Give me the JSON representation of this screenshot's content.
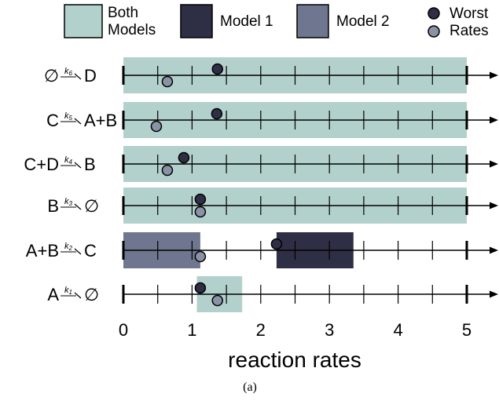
{
  "chart_data": {
    "type": "interval-scatter",
    "xlabel": "reaction rates",
    "xlim": [
      0,
      5
    ],
    "xticks": [
      0,
      1,
      2,
      3,
      4,
      5
    ],
    "minor_step": 0.5,
    "caption": "(a)",
    "colors": {
      "both": "#b3d1cc",
      "model1": "#2e2f45",
      "model2": "#6e7690",
      "worst": "#2e2f45",
      "rates": "#8a92a6"
    },
    "legend": [
      {
        "key": "both",
        "label_lines": [
          "Both",
          "Models"
        ]
      },
      {
        "key": "model1",
        "label_lines": [
          "Model 1"
        ]
      },
      {
        "key": "model2",
        "label_lines": [
          "Model 2"
        ]
      },
      {
        "key": "points",
        "label_lines": [
          "Worst",
          "Rates"
        ]
      }
    ],
    "rows": [
      {
        "reaction": {
          "left": "∅",
          "k": "6",
          "right": "D"
        },
        "intervals": [
          {
            "model": "both",
            "from": 0,
            "to": 5
          }
        ],
        "worst": 1.37,
        "rate": 0.64
      },
      {
        "reaction": {
          "left": "C",
          "k": "5",
          "right": "A+B"
        },
        "intervals": [
          {
            "model": "both",
            "from": 0,
            "to": 5
          }
        ],
        "worst": 1.36,
        "rate": 0.48
      },
      {
        "reaction": {
          "left": "C+D",
          "k": "4",
          "right": "B"
        },
        "intervals": [
          {
            "model": "both",
            "from": 0,
            "to": 5
          }
        ],
        "worst": 0.88,
        "rate": 0.64
      },
      {
        "reaction": {
          "left": "B",
          "k": "3",
          "right": "∅"
        },
        "intervals": [
          {
            "model": "both",
            "from": 0,
            "to": 5
          }
        ],
        "worst": 1.12,
        "rate": 1.12
      },
      {
        "reaction": {
          "left": "A+B",
          "k": "2",
          "right": "C"
        },
        "intervals": [
          {
            "model": "model2",
            "from": 0,
            "to": 1.12
          },
          {
            "model": "model1",
            "from": 2.23,
            "to": 3.35
          }
        ],
        "worst": 2.23,
        "rate": 1.12
      },
      {
        "reaction": {
          "left": "A",
          "k": "1",
          "right": "∅"
        },
        "intervals": [
          {
            "model": "both",
            "from": 1.07,
            "to": 1.73
          }
        ],
        "worst": 1.12,
        "rate": 1.37
      }
    ]
  }
}
